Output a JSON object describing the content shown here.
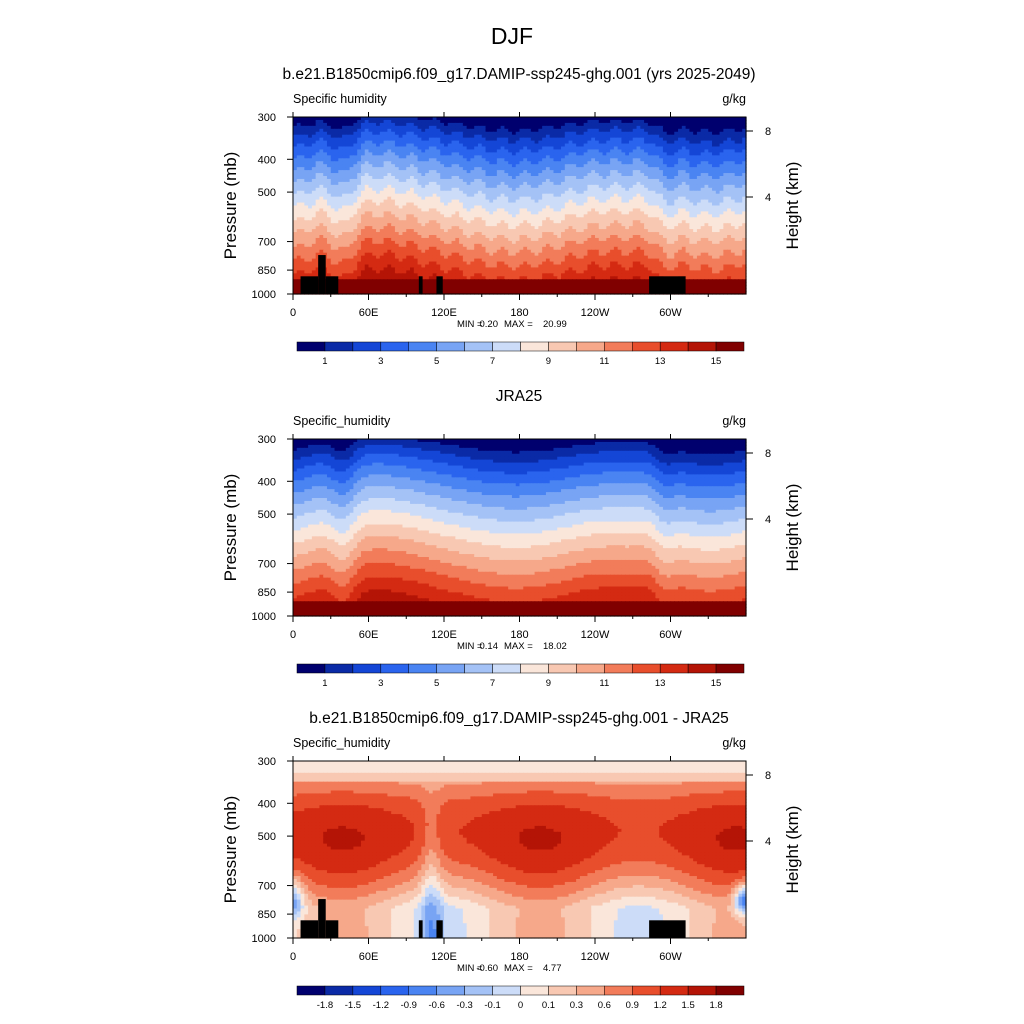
{
  "figure": {
    "title": "DJF"
  },
  "chart_data": [
    {
      "type": "heatmap",
      "title": "b.e21.B1850cmip6.f09_g17.DAMIP-ssp245-ghg.001 (yrs 2025-2049)",
      "variable_label": "Specific humidity",
      "units": "g/kg",
      "ylabel": "Pressure (mb)",
      "y2label": "Height (km)",
      "xticks": [
        "0",
        "60E",
        "120E",
        "180",
        "120W",
        "60W"
      ],
      "yticks": [
        "300",
        "400",
        "500",
        "700",
        "850",
        "1000"
      ],
      "y2ticks": [
        "8",
        "4"
      ],
      "min_label": "MIN =",
      "min_value": "0.20",
      "max_label": "MAX =",
      "max_value": "20.99",
      "colorbar_labels": [
        "1",
        "3",
        "5",
        "7",
        "9",
        "11",
        "13",
        "15"
      ],
      "ylim": [
        1000,
        300
      ],
      "xlim": [
        0,
        360
      ]
    },
    {
      "type": "heatmap",
      "title": "JRA25",
      "variable_label": "Specific_humidity",
      "units": "g/kg",
      "ylabel": "Pressure (mb)",
      "y2label": "Height (km)",
      "xticks": [
        "0",
        "60E",
        "120E",
        "180",
        "120W",
        "60W"
      ],
      "yticks": [
        "300",
        "400",
        "500",
        "700",
        "850",
        "1000"
      ],
      "y2ticks": [
        "8",
        "4"
      ],
      "min_label": "MIN =",
      "min_value": "0.14",
      "max_label": "MAX =",
      "max_value": "18.02",
      "colorbar_labels": [
        "1",
        "3",
        "5",
        "7",
        "9",
        "11",
        "13",
        "15"
      ],
      "ylim": [
        1000,
        300
      ],
      "xlim": [
        0,
        360
      ]
    },
    {
      "type": "heatmap",
      "title": "b.e21.B1850cmip6.f09_g17.DAMIP-ssp245-ghg.001 - JRA25",
      "variable_label": "Specific_humidity",
      "units": "g/kg",
      "ylabel": "Pressure (mb)",
      "y2label": "Height (km)",
      "xticks": [
        "0",
        "60E",
        "120E",
        "180",
        "120W",
        "60W"
      ],
      "yticks": [
        "300",
        "400",
        "500",
        "700",
        "850",
        "1000"
      ],
      "y2ticks": [
        "8",
        "4"
      ],
      "min_label": "MIN =",
      "min_value": "-0.60",
      "max_label": "MAX =",
      "max_value": "4.77",
      "colorbar_labels": [
        "-1.8",
        "-1.5",
        "-1.2",
        "-0.9",
        "-0.6",
        "-0.3",
        "-0.1",
        "0",
        "0.1",
        "0.3",
        "0.6",
        "0.9",
        "1.2",
        "1.5",
        "1.8"
      ],
      "ylim": [
        1000,
        300
      ],
      "xlim": [
        0,
        360
      ]
    }
  ],
  "colors": {
    "seq16": [
      "#00006e",
      "#0a2aa6",
      "#1446d6",
      "#2a64ee",
      "#4a84f2",
      "#78a4f4",
      "#a4c2f6",
      "#ccdcf8",
      "#fae6da",
      "#f8c8b2",
      "#f6a88a",
      "#f27c5a",
      "#e84e2c",
      "#d42a12",
      "#b41406",
      "#800000"
    ],
    "div16": [
      "#00006e",
      "#0a2aa6",
      "#1446d6",
      "#2a64ee",
      "#4a84f2",
      "#78a4f4",
      "#a4c2f6",
      "#ccdcf8",
      "#fae6da",
      "#f8c8b2",
      "#f6a88a",
      "#f27c5a",
      "#e84e2c",
      "#d42a12",
      "#b41406",
      "#800000"
    ],
    "land": "#000000"
  }
}
